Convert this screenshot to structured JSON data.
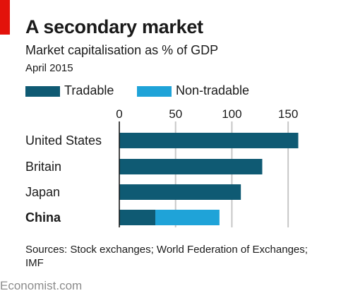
{
  "header": {
    "title": "A secondary market",
    "subtitle": "Market capitalisation as % of GDP",
    "date": "April 2015"
  },
  "legend": {
    "items": [
      {
        "label": "Tradable",
        "color": "#0f5a73"
      },
      {
        "label": "Non-tradable",
        "color": "#1fa3d8"
      }
    ]
  },
  "chart_data": {
    "type": "bar",
    "orientation": "horizontal",
    "stacked": true,
    "title": "A secondary market",
    "subtitle": "Market capitalisation as % of GDP",
    "xlabel": "",
    "ylabel": "",
    "xlim": [
      0,
      170
    ],
    "xticks": [
      "0",
      "50",
      "100",
      "150"
    ],
    "categories": [
      "United States",
      "Britain",
      "Japan",
      "China"
    ],
    "highlight_category": "China",
    "series": [
      {
        "name": "Tradable",
        "color": "#0f5a73",
        "values": [
          159,
          127,
          108,
          32
        ]
      },
      {
        "name": "Non-tradable",
        "color": "#1fa3d8",
        "values": [
          0,
          0,
          0,
          57
        ]
      }
    ],
    "grid": true,
    "legend_position": "top-left"
  },
  "footer": {
    "sources": "Sources: Stock exchanges; World Federation of Exchanges; IMF",
    "brand": "Economist.com"
  }
}
